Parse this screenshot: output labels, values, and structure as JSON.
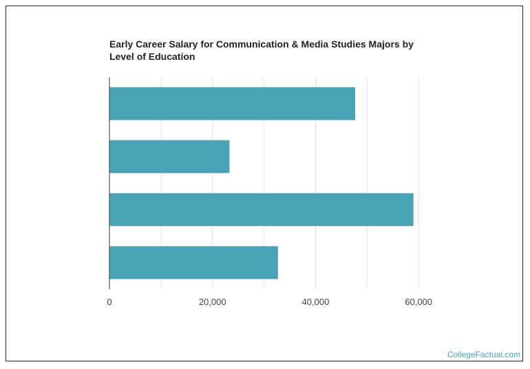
{
  "chart_data": {
    "type": "bar",
    "orientation": "horizontal",
    "title": "Early Career Salary for Communication & Media Studies Majors by Level of Education",
    "categories": [
      "",
      "",
      "",
      ""
    ],
    "values": [
      47700,
      23300,
      59000,
      32700
    ],
    "xlim": [
      0,
      70000
    ],
    "xticks": [
      0,
      20000,
      40000,
      60000
    ],
    "xtick_labels": [
      "0",
      "20,000",
      "40,000",
      "60,000"
    ],
    "grid": true,
    "bar_color": "#4aa3b4"
  },
  "credit": "CollegeFactual.com"
}
